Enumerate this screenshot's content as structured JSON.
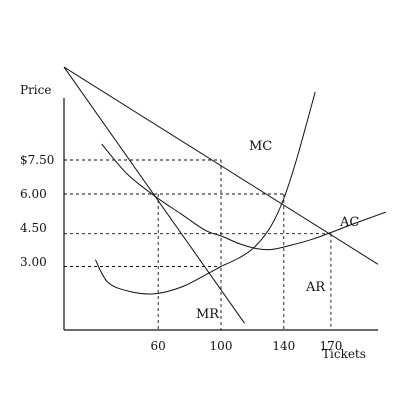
{
  "chart_data": {
    "type": "line",
    "title": "",
    "xlabel": "Tickets",
    "ylabel": "Price",
    "xlim": [
      0,
      200
    ],
    "ylim": [
      0,
      12
    ],
    "grid": false,
    "x_ticks": [
      {
        "value": 60,
        "label": "60"
      },
      {
        "value": 100,
        "label": "100"
      },
      {
        "value": 140,
        "label": "140"
      },
      {
        "value": 170,
        "label": "170"
      }
    ],
    "y_ticks": [
      {
        "value": 7.5,
        "label": "$7.50"
      },
      {
        "value": 6.0,
        "label": "6.00"
      },
      {
        "value": 4.5,
        "label": "4.50"
      },
      {
        "value": 3.0,
        "label": "3.00"
      }
    ],
    "series": [
      {
        "name": "AR",
        "points": [
          [
            0,
            11.6
          ],
          [
            200,
            2.9
          ]
        ]
      },
      {
        "name": "MR",
        "points": [
          [
            0,
            11.6
          ],
          [
            115,
            0.3
          ]
        ]
      },
      {
        "name": "MC",
        "points": [
          [
            20,
            3.1
          ],
          [
            28,
            2.1
          ],
          [
            42,
            1.7
          ],
          [
            58,
            1.6
          ],
          [
            75,
            1.9
          ],
          [
            92,
            2.5
          ],
          [
            100,
            2.8
          ],
          [
            112,
            3.2
          ],
          [
            122,
            3.7
          ],
          [
            132,
            4.6
          ],
          [
            140,
            5.8
          ],
          [
            148,
            7.5
          ],
          [
            160,
            10.5
          ]
        ]
      },
      {
        "name": "AC",
        "points": [
          [
            24,
            8.2
          ],
          [
            40,
            6.9
          ],
          [
            58,
            5.9
          ],
          [
            75,
            5.1
          ],
          [
            90,
            4.4
          ],
          [
            100,
            4.15
          ],
          [
            112,
            3.8
          ],
          [
            122,
            3.6
          ],
          [
            132,
            3.55
          ],
          [
            145,
            3.75
          ],
          [
            158,
            4.0
          ],
          [
            170,
            4.3
          ],
          [
            185,
            4.7
          ],
          [
            205,
            5.2
          ]
        ]
      }
    ],
    "guides": [
      {
        "from": [
          0,
          7.5
        ],
        "to": [
          100,
          7.5
        ]
      },
      {
        "from": [
          100,
          7.5
        ],
        "to": [
          100,
          0
        ]
      },
      {
        "from": [
          0,
          6.0
        ],
        "to": [
          140,
          6.0
        ]
      },
      {
        "from": [
          140,
          6.0
        ],
        "to": [
          140,
          0
        ]
      },
      {
        "from": [
          60,
          6.0
        ],
        "to": [
          60,
          0
        ]
      },
      {
        "from": [
          0,
          4.25
        ],
        "to": [
          170,
          4.25
        ]
      },
      {
        "from": [
          170,
          4.25
        ],
        "to": [
          170,
          0
        ]
      },
      {
        "from": [
          0,
          2.8
        ],
        "to": [
          100,
          2.8
        ]
      }
    ]
  }
}
